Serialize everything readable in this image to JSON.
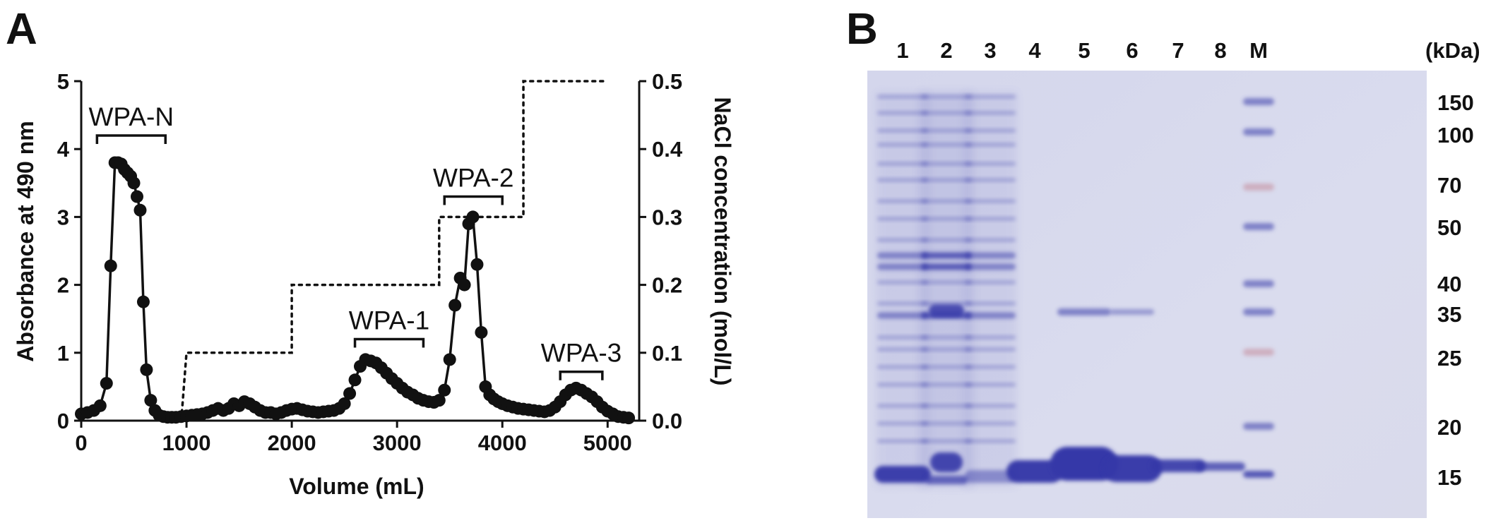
{
  "panels": {
    "a_label": "A",
    "b_label": "B"
  },
  "chart_data": [
    {
      "type": "line",
      "panel": "A",
      "title": "",
      "xlabel": "Volume (mL)",
      "ylabel": "Absorbance at 490 nm",
      "y2label": "NaCl concentration (mol/L)",
      "xlim": [
        0,
        5300
      ],
      "ylim": [
        0,
        5
      ],
      "y2lim": [
        0,
        0.5
      ],
      "x_ticks": [
        "0",
        "1000",
        "2000",
        "3000",
        "4000",
        "5000"
      ],
      "y_ticks": [
        "0",
        "1",
        "2",
        "3",
        "4",
        "5"
      ],
      "y2_ticks": [
        "0.0",
        "0.1",
        "0.2",
        "0.3",
        "0.4",
        "0.5"
      ],
      "series": [
        {
          "marker": "circle",
          "color": "#111111",
          "x": [
            0,
            60,
            120,
            180,
            240,
            280,
            320,
            350,
            380,
            410,
            440,
            470,
            500,
            530,
            560,
            590,
            620,
            660,
            700,
            740,
            780,
            820,
            860,
            900,
            950,
            1000,
            1050,
            1100,
            1150,
            1200,
            1250,
            1300,
            1350,
            1400,
            1450,
            1500,
            1550,
            1600,
            1650,
            1700,
            1750,
            1800,
            1850,
            1900,
            1950,
            2000,
            2050,
            2100,
            2150,
            2200,
            2250,
            2300,
            2350,
            2400,
            2450,
            2500,
            2550,
            2600,
            2650,
            2700,
            2750,
            2800,
            2850,
            2900,
            2950,
            3000,
            3050,
            3100,
            3150,
            3200,
            3250,
            3300,
            3350,
            3400,
            3450,
            3500,
            3550,
            3600,
            3640,
            3680,
            3720,
            3760,
            3800,
            3840,
            3880,
            3920,
            3960,
            4000,
            4050,
            4100,
            4150,
            4200,
            4250,
            4300,
            4350,
            4400,
            4450,
            4500,
            4550,
            4600,
            4650,
            4700,
            4750,
            4800,
            4850,
            4900,
            4950,
            5000,
            5050,
            5100,
            5150,
            5200
          ],
          "values": [
            0.1,
            0.12,
            0.15,
            0.22,
            0.55,
            2.28,
            3.8,
            3.8,
            3.78,
            3.7,
            3.65,
            3.6,
            3.5,
            3.3,
            3.1,
            1.75,
            0.75,
            0.3,
            0.15,
            0.08,
            0.06,
            0.05,
            0.05,
            0.05,
            0.06,
            0.07,
            0.08,
            0.09,
            0.1,
            0.12,
            0.15,
            0.18,
            0.15,
            0.18,
            0.25,
            0.22,
            0.28,
            0.25,
            0.2,
            0.15,
            0.12,
            0.12,
            0.1,
            0.12,
            0.15,
            0.17,
            0.18,
            0.16,
            0.14,
            0.13,
            0.12,
            0.13,
            0.14,
            0.15,
            0.18,
            0.25,
            0.4,
            0.6,
            0.8,
            0.9,
            0.88,
            0.85,
            0.78,
            0.7,
            0.62,
            0.55,
            0.48,
            0.42,
            0.38,
            0.33,
            0.3,
            0.28,
            0.27,
            0.3,
            0.45,
            0.9,
            1.7,
            2.1,
            2.0,
            2.9,
            3.0,
            2.3,
            1.3,
            0.5,
            0.38,
            0.32,
            0.28,
            0.25,
            0.22,
            0.2,
            0.18,
            0.17,
            0.16,
            0.15,
            0.14,
            0.13,
            0.15,
            0.2,
            0.28,
            0.38,
            0.45,
            0.48,
            0.45,
            0.4,
            0.35,
            0.28,
            0.2,
            0.14,
            0.1,
            0.06,
            0.05,
            0.04
          ]
        },
        {
          "axis": "y2",
          "style": "dotted",
          "color": "#111111",
          "x": [
            950,
            1000,
            1000,
            1950,
            2000,
            2000,
            3350,
            3400,
            3400,
            4050,
            4200,
            4200,
            5000
          ],
          "values": [
            0,
            0.1,
            0.1,
            0.1,
            0.1,
            0.2,
            0.2,
            0.2,
            0.3,
            0.3,
            0.3,
            0.5,
            0.5
          ]
        }
      ],
      "fractions": [
        {
          "label": "WPA-N",
          "x_start": 150,
          "x_end": 800,
          "y": 4.2
        },
        {
          "label": "WPA-1",
          "x_start": 2600,
          "x_end": 3250,
          "y": 1.2
        },
        {
          "label": "WPA-2",
          "x_start": 3450,
          "x_end": 4000,
          "y": 3.3
        },
        {
          "label": "WPA-3",
          "x_start": 4550,
          "x_end": 4950,
          "y": 0.72
        }
      ]
    },
    {
      "type": "gel",
      "panel": "B",
      "lane_labels": [
        "1",
        "2",
        "3",
        "4",
        "5",
        "6",
        "7",
        "8",
        "M"
      ],
      "unit_label": "(kDa)",
      "marker_labels": [
        "150",
        "100",
        "70",
        "50",
        "40",
        "35",
        "25",
        "20",
        "15"
      ],
      "colors": {
        "background": "#d7d9ee",
        "band": "#3538a8",
        "marker_red": "#c48a9a"
      }
    }
  ]
}
